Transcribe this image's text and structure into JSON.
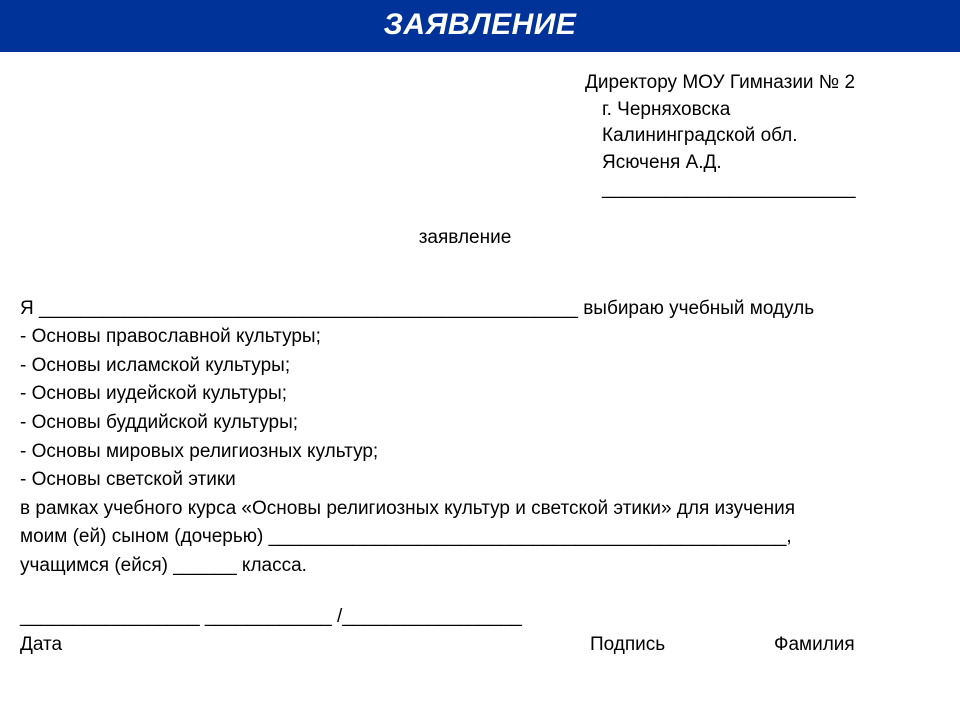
{
  "header": {
    "title": "ЗАЯВЛЕНИЕ",
    "bg_color": "#003399",
    "text_color": "#ffffff"
  },
  "addressee": {
    "line1": "Директору МОУ Гимназии № 2",
    "line2": "г. Черняховска",
    "line3": "Калининградской обл.",
    "line4": "Ясюченя А.Д.",
    "blank": "________________________"
  },
  "subtitle": "заявление",
  "body": {
    "p1": "Я  ___________________________________________________ выбираю учебный модуль",
    "items": [
      "- Основы православной культуры;",
      "- Основы исламской культуры;",
      "- Основы иудейской культуры;",
      "- Основы буддийской культуры;",
      "- Основы мировых религиозных культур;",
      "- Основы светской этики"
    ],
    "p2": "в рамках  учебного курса  «Основы религиозных культур и светской этики» для изучения",
    "p3": "моим  (ей)  сыном  (дочерью) _________________________________________________,",
    "p4": "учащимся  (ейся)   ______  класса."
  },
  "signature": {
    "blanks": "_________________                                                          ____________ /_________________",
    "date_label": "Дата",
    "sign_label": "Подпись",
    "surname_label": "Фамилия"
  }
}
